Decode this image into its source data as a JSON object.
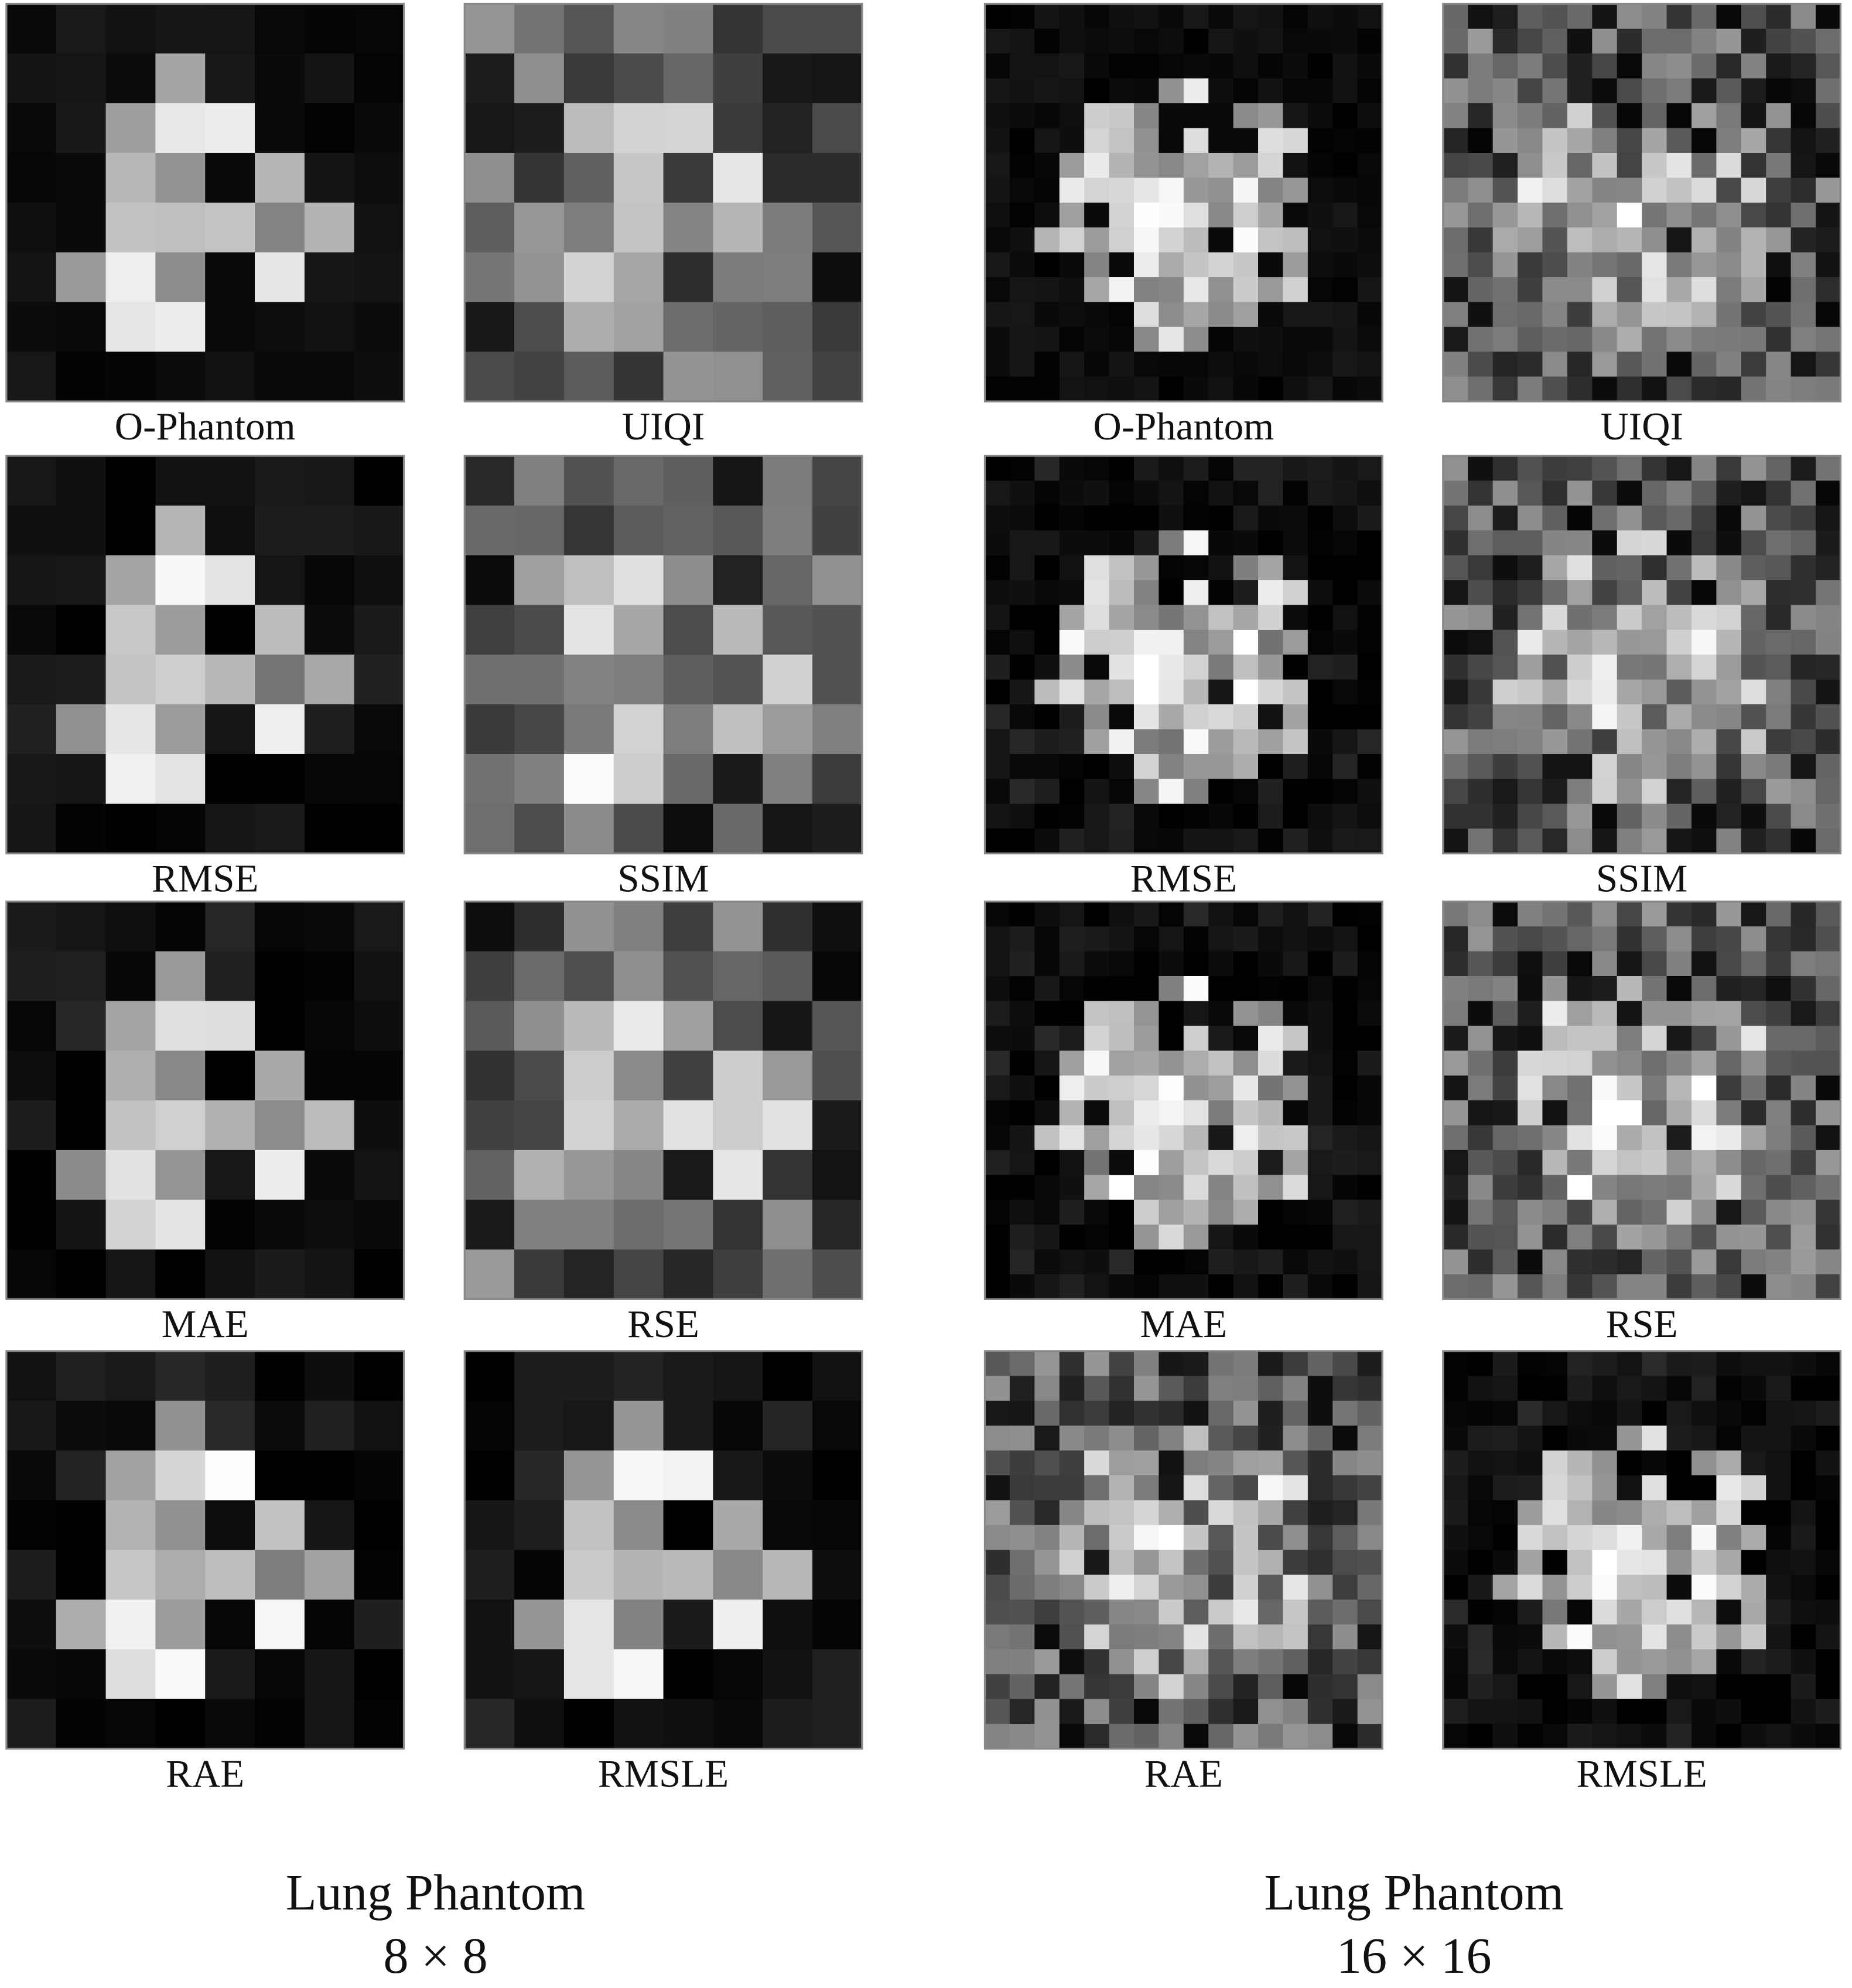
{
  "groups": [
    {
      "title": "Lung Phantom",
      "size": "8 × 8",
      "panels": [
        {
          "label": "O-Phantom"
        },
        {
          "label": "UIQI"
        },
        {
          "label": "RMSE"
        },
        {
          "label": "SSIM"
        },
        {
          "label": "MAE"
        },
        {
          "label": "RSE"
        },
        {
          "label": "RAE"
        },
        {
          "label": "RMSLE"
        }
      ]
    },
    {
      "title": "Lung Phantom",
      "size": "16 × 16",
      "panels": [
        {
          "label": "O-Phantom"
        },
        {
          "label": "UIQI"
        },
        {
          "label": "RMSE"
        },
        {
          "label": "SSIM"
        },
        {
          "label": "MAE"
        },
        {
          "label": "RSE"
        },
        {
          "label": "RAE"
        },
        {
          "label": "RMSLE"
        }
      ]
    }
  ]
}
